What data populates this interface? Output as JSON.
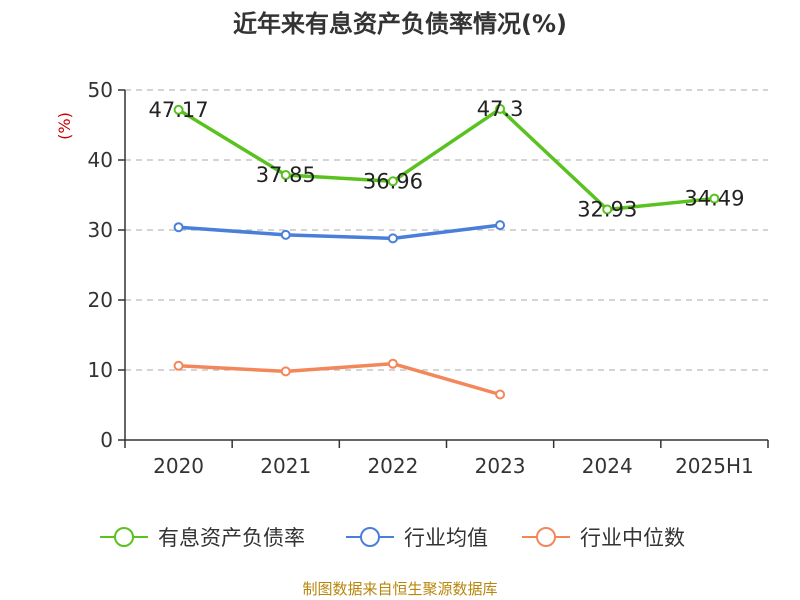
{
  "title": "近年来有息资产负债率情况(%)",
  "source": "制图数据来自恒生聚源数据库",
  "colors": {
    "series_1": "#5ac21e",
    "series_2": "#4a7fd9",
    "series_3": "#f4875a",
    "grid": "#bbbbbb",
    "axis": "#333333",
    "unit": "#cc0000",
    "source": "#b8860b"
  },
  "chart_data": {
    "type": "line",
    "title": "近年来有息资产负债率情况(%)",
    "ylabel": "(%)",
    "xlabel": "",
    "ylim": [
      0,
      50
    ],
    "yticks": [
      "0",
      "10",
      "20",
      "30",
      "40",
      "50"
    ],
    "categories": [
      "2020",
      "2021",
      "2022",
      "2023",
      "2024",
      "2025H1"
    ],
    "grid": true,
    "legend_position": "bottom",
    "series": [
      {
        "name": "有息资产负债率",
        "values": [
          47.17,
          37.85,
          36.96,
          47.3,
          32.93,
          34.49
        ],
        "labels": [
          "47.17",
          "37.85",
          "36.96",
          "47.3",
          "32.93",
          "34.49"
        ]
      },
      {
        "name": "行业均值",
        "values": [
          30.4,
          29.3,
          28.8,
          30.7,
          null,
          null
        ]
      },
      {
        "name": "行业中位数",
        "values": [
          10.6,
          9.8,
          10.9,
          6.5,
          null,
          null
        ]
      }
    ]
  }
}
